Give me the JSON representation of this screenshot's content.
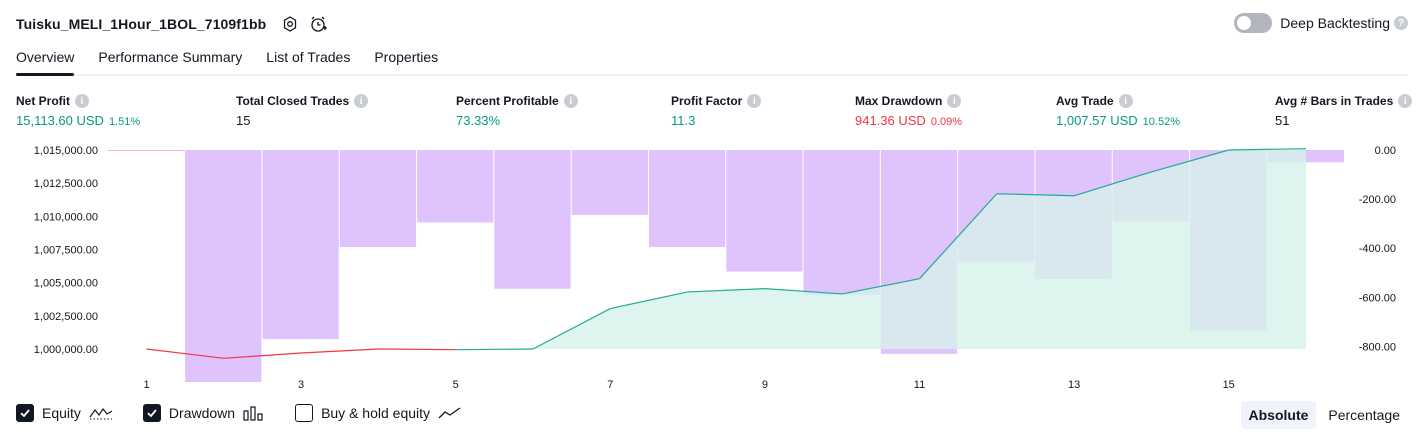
{
  "header": {
    "strategy_name": "Tuisku_MELI_1Hour_1BOL_7109f1bb",
    "deep_backtesting_label": "Deep Backtesting",
    "deep_backtesting_enabled": false
  },
  "tabs": [
    {
      "label": "Overview",
      "active": true
    },
    {
      "label": "Performance Summary",
      "active": false
    },
    {
      "label": "List of Trades",
      "active": false
    },
    {
      "label": "Properties",
      "active": false
    }
  ],
  "stats": {
    "net_profit": {
      "label": "Net Profit",
      "value": "15,113.60 USD",
      "pct": "1.51%"
    },
    "total_closed_trades": {
      "label": "Total Closed Trades",
      "value": "15"
    },
    "percent_profitable": {
      "label": "Percent Profitable",
      "value": "73.33%"
    },
    "profit_factor": {
      "label": "Profit Factor",
      "value": "11.3"
    },
    "max_drawdown": {
      "label": "Max Drawdown",
      "value": "941.36 USD",
      "pct": "0.09%"
    },
    "avg_trade": {
      "label": "Avg Trade",
      "value": "1,007.57 USD",
      "pct": "10.52%"
    },
    "avg_bars": {
      "label": "Avg # Bars in Trades",
      "value": "51"
    }
  },
  "chart_data": {
    "type": "area",
    "x": [
      1,
      2,
      3,
      4,
      5,
      6,
      7,
      8,
      9,
      10,
      11,
      12,
      13,
      14,
      15,
      16
    ],
    "x_tick_labels": [
      "1",
      "3",
      "5",
      "7",
      "9",
      "11",
      "13",
      "15"
    ],
    "left_axis": {
      "ylim": [
        999000,
        1015000
      ],
      "tick_labels": [
        "1,015,000.00",
        "1,012,500.00",
        "1,010,000.00",
        "1,007,500.00",
        "1,005,000.00",
        "1,002,500.00",
        "1,000,000.00"
      ]
    },
    "right_axis": {
      "ylim": [
        -900,
        0
      ],
      "tick_labels": [
        "0.00",
        "-200.00",
        "-400.00",
        "-600.00",
        "-800.00"
      ]
    },
    "series": [
      {
        "name": "Equity",
        "axis": "left",
        "values": [
          1000000,
          999300,
          999700,
          1000000,
          999950,
          1000000,
          1003050,
          1004300,
          1004550,
          1004150,
          1005300,
          1011700,
          1011550,
          1013350,
          1015000,
          1015100
        ]
      },
      {
        "name": "Drawdown",
        "axis": "right",
        "values": [
          0,
          -945,
          -770,
          -395,
          -295,
          -565,
          -265,
          -395,
          -495,
          -590,
          -830,
          -455,
          -525,
          -290,
          -735,
          -50
        ]
      }
    ],
    "colors": {
      "equity_profit_line": "#22ab94",
      "equity_loss_line": "#f23645",
      "equity_fill": "#d6f1ea",
      "drawdown_bar": "#dfc3fd",
      "grid": "#f0f3fa"
    }
  },
  "bottom": {
    "equity_label": "Equity",
    "drawdown_label": "Drawdown",
    "buy_hold_label": "Buy & hold equity",
    "equity_checked": true,
    "drawdown_checked": true,
    "buy_hold_checked": false,
    "absolute_label": "Absolute",
    "percentage_label": "Percentage",
    "mode": "Absolute"
  },
  "icons": {
    "settings": "settings-icon",
    "alert": "alert-clock-icon",
    "help": "question-icon"
  }
}
